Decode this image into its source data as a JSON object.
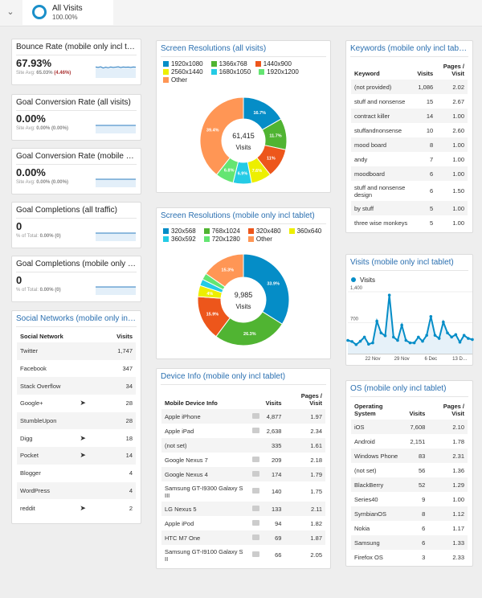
{
  "segment": {
    "name": "All Visits",
    "percent": "100.00%"
  },
  "metrics": [
    {
      "title": "Bounce Rate (mobile only incl tablet)",
      "value": "67.93%",
      "sub_label": "Site Avg:",
      "sub_value": "65.03%",
      "sub_change": "(4.46%)",
      "spark": [
        60,
        55,
        62,
        50,
        58,
        52,
        60,
        55,
        58,
        62,
        54,
        60,
        57,
        59,
        55,
        60,
        58
      ]
    },
    {
      "title": "Goal Conversion Rate (all visits)",
      "value": "0.00%",
      "sub_label": "Site Avg:",
      "sub_value": "0.00%",
      "sub_change": "(0.00%)",
      "spark": [
        0,
        0
      ]
    },
    {
      "title": "Goal Conversion Rate (mobile only i…",
      "value": "0.00%",
      "sub_label": "Site Avg:",
      "sub_value": "0.00%",
      "sub_change": "(0.00%)",
      "spark": [
        0,
        0
      ]
    },
    {
      "title": "Goal Completions (all traffic)",
      "value": "0",
      "sub_label": "% of Total:",
      "sub_value": "0.00%",
      "sub_change": "(0)",
      "spark": [
        0,
        0
      ]
    },
    {
      "title": "Goal Completions (mobile only incl t…",
      "value": "0",
      "sub_label": "% of Total:",
      "sub_value": "0.00%",
      "sub_change": "(0)",
      "spark": [
        0,
        0
      ]
    }
  ],
  "social": {
    "title": "Social Networks (mobile only incl ta…",
    "headers": [
      "Social Network",
      "Visits"
    ],
    "rows": [
      [
        "Twitter",
        "1,747",
        false
      ],
      [
        "Facebook",
        "347",
        false
      ],
      [
        "Stack Overflow",
        "34",
        false
      ],
      [
        "Google+",
        "28",
        true
      ],
      [
        "StumbleUpon",
        "28",
        false
      ],
      [
        "Digg",
        "18",
        true
      ],
      [
        "Pocket",
        "14",
        true
      ],
      [
        "Blogger",
        "4",
        false
      ],
      [
        "WordPress",
        "4",
        false
      ],
      [
        "reddit",
        "2",
        true
      ]
    ]
  },
  "devices": {
    "title": "Device Info (mobile only incl tablet)",
    "headers": [
      "Mobile Device Info",
      "Visits",
      "Pages / Visit"
    ],
    "rows": [
      [
        "Apple iPhone",
        "4,877",
        "1.97",
        true
      ],
      [
        "Apple iPad",
        "2,638",
        "2.34",
        true
      ],
      [
        "(not set)",
        "335",
        "1.61",
        false
      ],
      [
        "Google Nexus 7",
        "209",
        "2.18",
        true
      ],
      [
        "Google Nexus 4",
        "174",
        "1.79",
        true
      ],
      [
        "Samsung GT-I9300 Galaxy S III",
        "140",
        "1.75",
        true
      ],
      [
        "LG Nexus 5",
        "133",
        "2.11",
        true
      ],
      [
        "Apple iPod",
        "94",
        "1.82",
        true
      ],
      [
        "HTC M7 One",
        "69",
        "1.87",
        true
      ],
      [
        "Samsung GT-I9100 Galaxy S II",
        "66",
        "2.05",
        true
      ]
    ]
  },
  "keywords": {
    "title": "Keywords (mobile only incl tablet)",
    "headers": [
      "Keyword",
      "Visits",
      "Pages / Visit"
    ],
    "rows": [
      [
        "(not provided)",
        "1,086",
        "2.02"
      ],
      [
        "stuff and nonsense",
        "15",
        "2.67"
      ],
      [
        "contract killer",
        "14",
        "1.00"
      ],
      [
        "stuffandnonsense",
        "10",
        "2.60"
      ],
      [
        "mood board",
        "8",
        "1.00"
      ],
      [
        "andy",
        "7",
        "1.00"
      ],
      [
        "moodboard",
        "6",
        "1.00"
      ],
      [
        "stuff and nonsense design",
        "6",
        "1.50"
      ],
      [
        "by stuff",
        "5",
        "1.00"
      ],
      [
        "three wise monkeys",
        "5",
        "1.00"
      ]
    ]
  },
  "os": {
    "title": "OS (mobile only incl tablet)",
    "headers": [
      "Operating System",
      "Visits",
      "Pages / Visit"
    ],
    "rows": [
      [
        "iOS",
        "7,608",
        "2.10"
      ],
      [
        "Android",
        "2,151",
        "1.78"
      ],
      [
        "Windows Phone",
        "83",
        "2.31"
      ],
      [
        "(not set)",
        "56",
        "1.36"
      ],
      [
        "BlackBerry",
        "52",
        "1.29"
      ],
      [
        "Series40",
        "9",
        "1.00"
      ],
      [
        "SymbianOS",
        "8",
        "1.12"
      ],
      [
        "Nokia",
        "6",
        "1.17"
      ],
      [
        "Samsung",
        "6",
        "1.33"
      ],
      [
        "Firefox OS",
        "3",
        "2.33"
      ]
    ]
  },
  "chart_data": [
    {
      "type": "pie",
      "title": "Screen Resolutions (all visits)",
      "center_value": "61,415",
      "center_label": "Visits",
      "labels": [
        "1920x1080",
        "1366x768",
        "1440x900",
        "2560x1440",
        "1680x1050",
        "1920x1200",
        "Other"
      ],
      "values": [
        16.7,
        11.7,
        11,
        7.6,
        6.9,
        6.8,
        39.4
      ],
      "value_labels": [
        "16.7%",
        "11.7%",
        "11%",
        "7.6%",
        "6.9%",
        "6.8%",
        "39.4%"
      ],
      "colors": [
        "#058dc7",
        "#50b432",
        "#ed561b",
        "#edef00",
        "#24cbe5",
        "#64e572",
        "#ff9655"
      ]
    },
    {
      "type": "pie",
      "title": "Screen Resolutions (mobile only incl tablet)",
      "center_value": "9,985",
      "center_label": "Visits",
      "labels": [
        "320x568",
        "768x1024",
        "320x480",
        "360x640",
        "360x592",
        "720x1280",
        "Other"
      ],
      "values": [
        33.9,
        26.3,
        15.9,
        4,
        2.3,
        2.3,
        15.3
      ],
      "value_labels": [
        "33.9%",
        "26.3%",
        "15.9%",
        "4%",
        "",
        "",
        "15.3%"
      ],
      "colors": [
        "#058dc7",
        "#50b432",
        "#ed561b",
        "#edef00",
        "#24cbe5",
        "#64e572",
        "#ff9655"
      ]
    },
    {
      "type": "line",
      "title": "Visits (mobile only incl tablet)",
      "legend": "Visits",
      "color": "#058dc7",
      "ylim": [
        0,
        1400
      ],
      "yticks": [
        "1,400",
        "700"
      ],
      "ytick_values": [
        1400,
        700
      ],
      "xticks": [
        "22 Nov",
        "29 Nov",
        "6 Dec",
        "13 D…"
      ],
      "xtick_index": [
        6,
        13,
        20,
        27
      ],
      "values": [
        300,
        275,
        205,
        280,
        375,
        215,
        245,
        735,
        470,
        405,
        1325,
        375,
        300,
        645,
        300,
        245,
        245,
        375,
        280,
        415,
        840,
        415,
        345,
        715,
        470,
        375,
        430,
        260,
        415,
        345,
        320
      ]
    }
  ]
}
